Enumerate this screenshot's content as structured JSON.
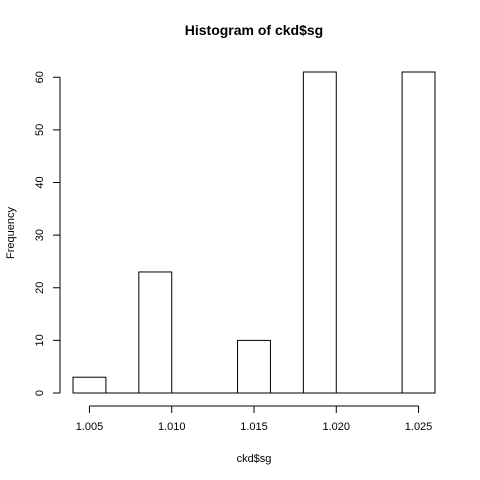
{
  "chart_data": {
    "type": "bar",
    "title": "Histogram of ckd$sg",
    "xlabel": "ckd$sg",
    "ylabel": "Frequency",
    "bins": [
      {
        "start": 1.004,
        "end": 1.006,
        "value": 3
      },
      {
        "start": 1.006,
        "end": 1.008,
        "value": 0
      },
      {
        "start": 1.008,
        "end": 1.01,
        "value": 23
      },
      {
        "start": 1.01,
        "end": 1.012,
        "value": 0
      },
      {
        "start": 1.012,
        "end": 1.014,
        "value": 0
      },
      {
        "start": 1.014,
        "end": 1.016,
        "value": 10
      },
      {
        "start": 1.016,
        "end": 1.018,
        "value": 0
      },
      {
        "start": 1.018,
        "end": 1.02,
        "value": 61
      },
      {
        "start": 1.02,
        "end": 1.022,
        "value": 0
      },
      {
        "start": 1.022,
        "end": 1.024,
        "value": 0
      },
      {
        "start": 1.024,
        "end": 1.026,
        "value": 61
      }
    ],
    "xticks": [
      {
        "value": 1.005,
        "label": "1.005"
      },
      {
        "value": 1.01,
        "label": "1.010"
      },
      {
        "value": 1.015,
        "label": "1.015"
      },
      {
        "value": 1.02,
        "label": "1.020"
      },
      {
        "value": 1.025,
        "label": "1.025"
      }
    ],
    "yticks": [
      {
        "value": 0,
        "label": "0"
      },
      {
        "value": 10,
        "label": "10"
      },
      {
        "value": 20,
        "label": "20"
      },
      {
        "value": 30,
        "label": "30"
      },
      {
        "value": 40,
        "label": "40"
      },
      {
        "value": 50,
        "label": "50"
      },
      {
        "value": 60,
        "label": "60"
      }
    ],
    "xlim": [
      1.004,
      1.026
    ],
    "ylim": [
      0,
      61
    ],
    "grid": false,
    "bar_fill": "#ffffff",
    "bar_stroke": "#000000"
  }
}
